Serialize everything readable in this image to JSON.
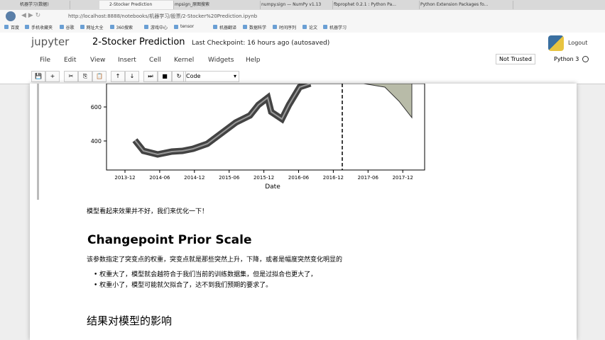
{
  "browser": {
    "tabs": [
      "机器学习(数据)",
      "2-Stocker Prediction",
      "mpsign_原图搜索",
      "numpy.sign — NumPy v1.13",
      "fbprophet 0.2.1 : Python Pa...",
      "Python Extension Packages fo..."
    ],
    "url": "http://localhost:8888/notebooks/机器学习/股票/2-Stocker%20Prediction.ipynb",
    "bookmarks": [
      "百度",
      "手机收藏夹",
      "谷歌",
      "网址大全",
      "360搜索",
      "游戏中心",
      "tensor",
      "机器翻译",
      "数据科学",
      "时间序列",
      "论文",
      "机器学习"
    ]
  },
  "header": {
    "logo": "jupyter",
    "title": "2-Stocker Prediction",
    "checkpoint": "Last Checkpoint: 16 hours ago (autosaved)",
    "logout": "Logout"
  },
  "menu": [
    "File",
    "Edit",
    "View",
    "Insert",
    "Cell",
    "Kernel",
    "Widgets",
    "Help"
  ],
  "trust": "Not Trusted",
  "kernel": "Python 3",
  "cell_type": "Code",
  "plot": {
    "yticks": [
      "400",
      "600"
    ],
    "xticks": [
      "2013-12",
      "2014-06",
      "2014-12",
      "2015-06",
      "2015-12",
      "2016-06",
      "2016-12",
      "2017-06",
      "2017-12"
    ],
    "xlabel": "Date"
  },
  "cells": {
    "note": "模型看起来效果并不好，我们来优化一下！",
    "heading": "Changepoint Prior Scale",
    "para": "该参数指定了突变点的权重，突变点就是那些突然上升，下降，或者是幅度突然变化明显的",
    "bullets": [
      "权重大了，模型就会越符合于我们当前的训练数据集，但是过拟合也更大了，",
      "权重小了，模型可能就欠拟合了，达不到我们预期的要求了。"
    ],
    "subheading": "结果对模型的影响"
  }
}
